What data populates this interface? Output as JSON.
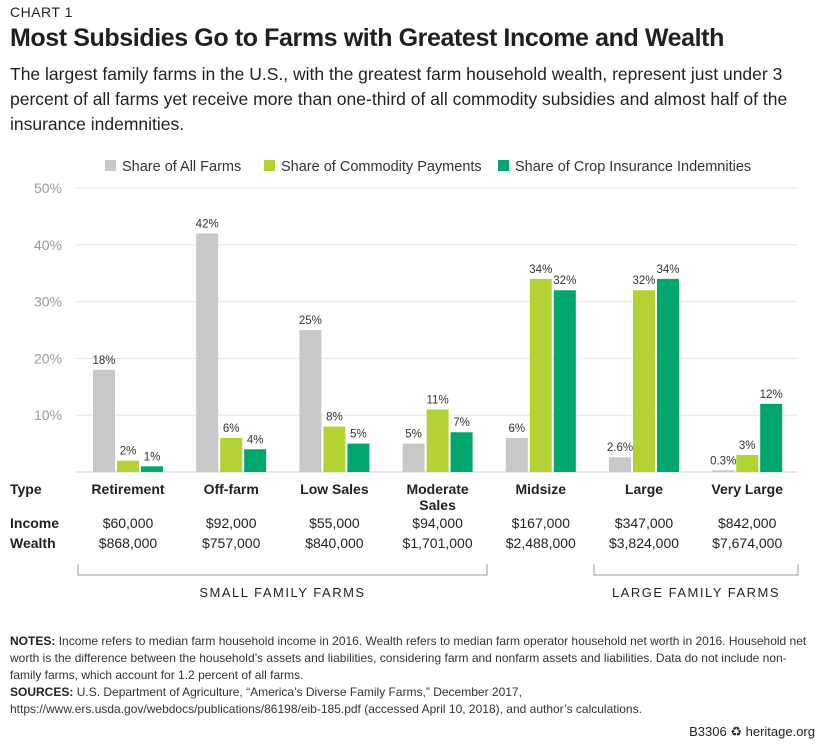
{
  "kicker": "CHART 1",
  "title": "Most Subsidies Go to Farms with Greatest Income and Wealth",
  "subtitle": "The largest family farms in the U.S., with the greatest farm household wealth, represent just under 3 percent of all farms yet receive more than one-third of all commodity subsidies and almost half of the insurance indemnities.",
  "chart_data": {
    "type": "bar",
    "title": "Most Subsidies Go to Farms with Greatest Income and Wealth",
    "categories": [
      "Retirement",
      "Off-farm",
      "Low Sales",
      "Moderate Sales",
      "Midsize",
      "Large",
      "Very Large"
    ],
    "series": [
      {
        "name": "Share of All Farms",
        "color": "#c7c8ca",
        "values": [
          18,
          42,
          25,
          5,
          6,
          2.6,
          0.3
        ],
        "labels": [
          "18%",
          "42%",
          "25%",
          "5%",
          "6%",
          "2.6%",
          "0.3%"
        ]
      },
      {
        "name": "Share of Commodity Payments",
        "color": "#b3d234",
        "values": [
          2,
          6,
          8,
          11,
          34,
          32,
          3
        ],
        "labels": [
          "2%",
          "6%",
          "8%",
          "11%",
          "34%",
          "32%",
          "3%"
        ]
      },
      {
        "name": "Share of Crop Insurance Indemnities",
        "color": "#00a66d",
        "values": [
          1,
          4,
          5,
          7,
          32,
          34,
          12
        ],
        "labels": [
          "1%",
          "4%",
          "5%",
          "7%",
          "32%",
          "34%",
          "12%"
        ]
      }
    ],
    "ylim": [
      0,
      50
    ],
    "yticks": [
      "10%",
      "20%",
      "30%",
      "40%",
      "50%"
    ],
    "ytick_values": [
      10,
      20,
      30,
      40,
      50
    ],
    "grid": true,
    "legend": "top",
    "row_headers": {
      "type": "Type",
      "income": "Income",
      "wealth": "Wealth"
    },
    "income": [
      "$60,000",
      "$92,000",
      "$55,000",
      "$94,000",
      "$167,000",
      "$347,000",
      "$842,000"
    ],
    "wealth": [
      "$868,000",
      "$757,000",
      "$840,000",
      "$1,701,000",
      "$2,488,000",
      "$3,824,000",
      "$7,674,000"
    ],
    "groups": [
      {
        "label": "SMALL FAMILY FARMS",
        "from": 0,
        "to": 3
      },
      {
        "label": "LARGE FAMILY FARMS",
        "from": 5,
        "to": 6
      }
    ]
  },
  "notes_label": "NOTES:",
  "notes": "Income refers to median farm household income in 2016. Wealth refers to median farm operator household net worth in 2016. Household net worth is the difference between the household’s assets and liabilities, considering farm and nonfarm assets and liabilities. Data do not include non-family farms, which account for 1.2 percent of all farms.",
  "sources_label": "SOURCES:",
  "sources": "U.S. Department of Agriculture, “America’s Diverse Family Farms,” December 2017, https://www.ers.usda.gov/webdocs/publications/86198/eib-185.pdf (accessed April 10, 2018), and author’s calculations.",
  "footer": {
    "code": "B3306",
    "site": "heritage.org"
  }
}
